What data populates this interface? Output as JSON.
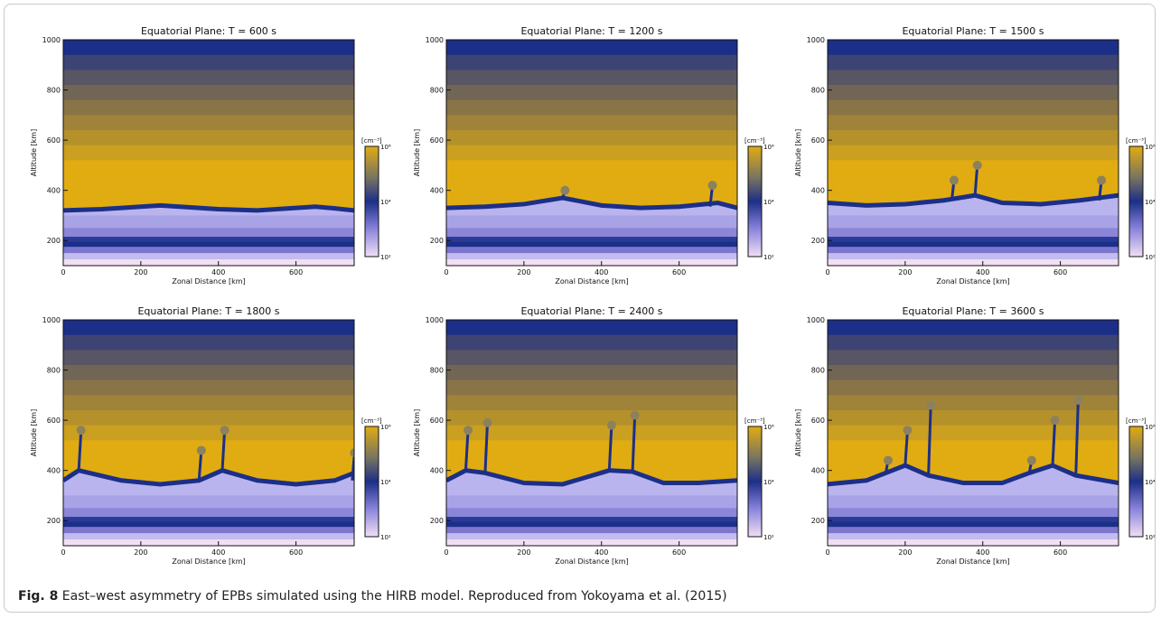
{
  "figure": {
    "caption_label": "Fig. 8",
    "caption_text": "East–west asymmetry of EPBs simulated using the HIRB model. Reproduced from Yokoyama et al. (2015)"
  },
  "colors": {
    "dark_blue": "#1c2f88",
    "gold": "#e0ac12",
    "lavender": "#b9b4ee",
    "pink_white": "#f1dff3",
    "mid_olive": "#8b815e"
  },
  "chart_data": [
    {
      "type": "heatmap",
      "title": "Equatorial Plane: T =   600 s",
      "xlabel": "Zonal Distance [km]",
      "ylabel": "Altitude [km]",
      "xlim": [
        0,
        750
      ],
      "ylim": [
        100,
        1000
      ],
      "x_ticks": [
        "0",
        "200",
        "400",
        "600"
      ],
      "y_ticks": [
        "200",
        "400",
        "600",
        "800",
        "1000"
      ],
      "colorbar": {
        "unit": "[cm⁻³]",
        "ticks": [
          "10²",
          "10⁴",
          "10⁶"
        ]
      },
      "bottomside_altitude_km": {
        "x": [
          0,
          100,
          200,
          250,
          300,
          400,
          500,
          600,
          650,
          700,
          750
        ],
        "y": [
          320,
          325,
          335,
          340,
          335,
          325,
          320,
          330,
          335,
          328,
          320
        ]
      },
      "plumes": []
    },
    {
      "type": "heatmap",
      "title": "Equatorial Plane: T =  1200 s",
      "xlabel": "Zonal Distance [km]",
      "ylabel": "Altitude [km]",
      "xlim": [
        0,
        750
      ],
      "ylim": [
        100,
        1000
      ],
      "x_ticks": [
        "0",
        "200",
        "400",
        "600"
      ],
      "y_ticks": [
        "200",
        "400",
        "600",
        "800",
        "1000"
      ],
      "colorbar": {
        "unit": "[cm⁻³]",
        "ticks": [
          "10²",
          "10⁴",
          "10⁶"
        ]
      },
      "bottomside_altitude_km": {
        "x": [
          0,
          100,
          200,
          300,
          400,
          500,
          600,
          700,
          750
        ],
        "y": [
          330,
          335,
          345,
          370,
          340,
          330,
          335,
          350,
          330
        ]
      },
      "plumes": [
        {
          "x": 300,
          "top": 400
        },
        {
          "x": 680,
          "top": 420
        }
      ]
    },
    {
      "type": "heatmap",
      "title": "Equatorial Plane: T =  1500 s",
      "xlabel": "Zonal Distance [km]",
      "ylabel": "Altitude [km]",
      "xlim": [
        0,
        750
      ],
      "ylim": [
        100,
        1000
      ],
      "x_ticks": [
        "0",
        "200",
        "400",
        "600"
      ],
      "y_ticks": [
        "200",
        "400",
        "600",
        "800",
        "1000"
      ],
      "colorbar": {
        "unit": "[cm⁻³]",
        "ticks": [
          "10²",
          "10⁴",
          "10⁶"
        ]
      },
      "bottomside_altitude_km": {
        "x": [
          0,
          100,
          200,
          300,
          380,
          450,
          550,
          650,
          750
        ],
        "y": [
          350,
          340,
          345,
          360,
          380,
          350,
          345,
          360,
          380
        ]
      },
      "plumes": [
        {
          "x": 320,
          "top": 440
        },
        {
          "x": 380,
          "top": 500
        },
        {
          "x": 700,
          "top": 440
        }
      ]
    },
    {
      "type": "heatmap",
      "title": "Equatorial Plane: T =  1800 s",
      "xlabel": "Zonal Distance [km]",
      "ylabel": "Altitude [km]",
      "xlim": [
        0,
        750
      ],
      "ylim": [
        100,
        1000
      ],
      "x_ticks": [
        "0",
        "200",
        "400",
        "600"
      ],
      "y_ticks": [
        "200",
        "400",
        "600",
        "800",
        "1000"
      ],
      "colorbar": {
        "unit": "[cm⁻³]",
        "ticks": [
          "10²",
          "10⁴",
          "10⁶"
        ]
      },
      "bottomside_altitude_km": {
        "x": [
          0,
          40,
          150,
          250,
          350,
          410,
          500,
          600,
          700,
          750
        ],
        "y": [
          360,
          400,
          360,
          345,
          360,
          400,
          360,
          345,
          360,
          390
        ]
      },
      "plumes": [
        {
          "x": 40,
          "top": 560
        },
        {
          "x": 350,
          "top": 480
        },
        {
          "x": 410,
          "top": 560
        },
        {
          "x": 745,
          "top": 470
        }
      ]
    },
    {
      "type": "heatmap",
      "title": "Equatorial Plane: T =  2400 s",
      "xlabel": "Zonal Distance [km]",
      "ylabel": "Altitude [km]",
      "xlim": [
        0,
        750
      ],
      "ylim": [
        100,
        1000
      ],
      "x_ticks": [
        "0",
        "200",
        "400",
        "600"
      ],
      "y_ticks": [
        "200",
        "400",
        "600",
        "800",
        "1000"
      ],
      "colorbar": {
        "unit": "[cm⁻³]",
        "ticks": [
          "10²",
          "10⁴",
          "10⁶"
        ]
      },
      "bottomside_altitude_km": {
        "x": [
          0,
          50,
          100,
          200,
          300,
          420,
          480,
          560,
          650,
          750
        ],
        "y": [
          360,
          400,
          390,
          350,
          345,
          400,
          395,
          350,
          350,
          360
        ]
      },
      "plumes": [
        {
          "x": 50,
          "top": 560
        },
        {
          "x": 100,
          "top": 590
        },
        {
          "x": 420,
          "top": 580
        },
        {
          "x": 480,
          "top": 620
        }
      ]
    },
    {
      "type": "heatmap",
      "title": "Equatorial Plane: T =  3600 s",
      "xlabel": "Zonal Distance [km]",
      "ylabel": "Altitude [km]",
      "xlim": [
        0,
        750
      ],
      "ylim": [
        100,
        1000
      ],
      "x_ticks": [
        "0",
        "200",
        "400",
        "600"
      ],
      "y_ticks": [
        "200",
        "400",
        "600",
        "800",
        "1000"
      ],
      "colorbar": {
        "unit": "[cm⁻³]",
        "ticks": [
          "10²",
          "10⁴",
          "10⁶"
        ]
      },
      "bottomside_altitude_km": {
        "x": [
          0,
          100,
          150,
          200,
          260,
          350,
          450,
          520,
          580,
          640,
          750
        ],
        "y": [
          345,
          360,
          390,
          420,
          380,
          350,
          350,
          390,
          420,
          380,
          350
        ]
      },
      "plumes": [
        {
          "x": 150,
          "top": 440
        },
        {
          "x": 200,
          "top": 560
        },
        {
          "x": 260,
          "top": 660
        },
        {
          "x": 520,
          "top": 440
        },
        {
          "x": 580,
          "top": 600
        },
        {
          "x": 640,
          "top": 680
        }
      ]
    }
  ]
}
